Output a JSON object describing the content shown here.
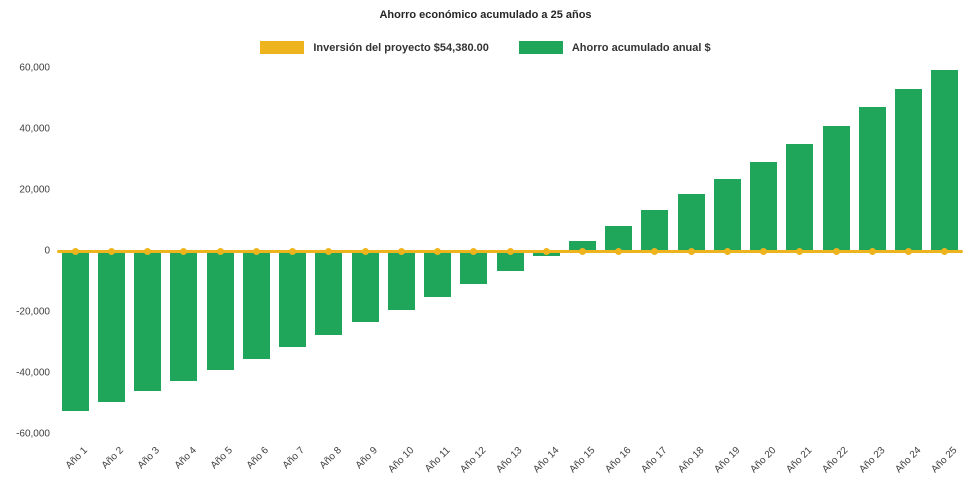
{
  "chart": {
    "title": "Ahorro económico acumulado a 25 años",
    "legend": [
      {
        "label": "Inversión del proyecto $54,380.00",
        "color": "#eeb41e"
      },
      {
        "label": "Ahorro acumulado anual $",
        "color": "#1fa65a"
      }
    ]
  },
  "chart_data": {
    "type": "bar",
    "title": "Ahorro económico acumulado a 25 años",
    "categories": [
      "Año 1",
      "Año 2",
      "Año 3",
      "Año 4",
      "Año 5",
      "Año 6",
      "Año 7",
      "Año 8",
      "Año 9",
      "Año 10",
      "Año 11",
      "Año 12",
      "Año 13",
      "Año 14",
      "Año 15",
      "Año 16",
      "Año 17",
      "Año 18",
      "Año 19",
      "Año 20",
      "Año 21",
      "Año 22",
      "Año 23",
      "Año 24",
      "Año 25"
    ],
    "series": [
      {
        "name": "Inversión del proyecto $54,380.00",
        "type": "line",
        "color": "#eeb41e",
        "values": [
          0,
          0,
          0,
          0,
          0,
          0,
          0,
          0,
          0,
          0,
          0,
          0,
          0,
          0,
          0,
          0,
          0,
          0,
          0,
          0,
          0,
          0,
          0,
          0,
          0
        ]
      },
      {
        "name": "Ahorro acumulado anual $",
        "type": "bar",
        "color": "#1fa65a",
        "values": [
          -52500,
          -49500,
          -46000,
          -42500,
          -39000,
          -35500,
          -31500,
          -27500,
          -23300,
          -19200,
          -15000,
          -10800,
          -6500,
          -1800,
          3200,
          8300,
          13600,
          18700,
          23700,
          29200,
          35000,
          41000,
          47100,
          53200,
          59400
        ]
      }
    ],
    "ylim": [
      -60000,
      60000
    ],
    "yticks": [
      60000,
      40000,
      20000,
      0,
      -20000,
      -40000,
      -60000
    ],
    "grid": false,
    "legend_position": "top"
  }
}
